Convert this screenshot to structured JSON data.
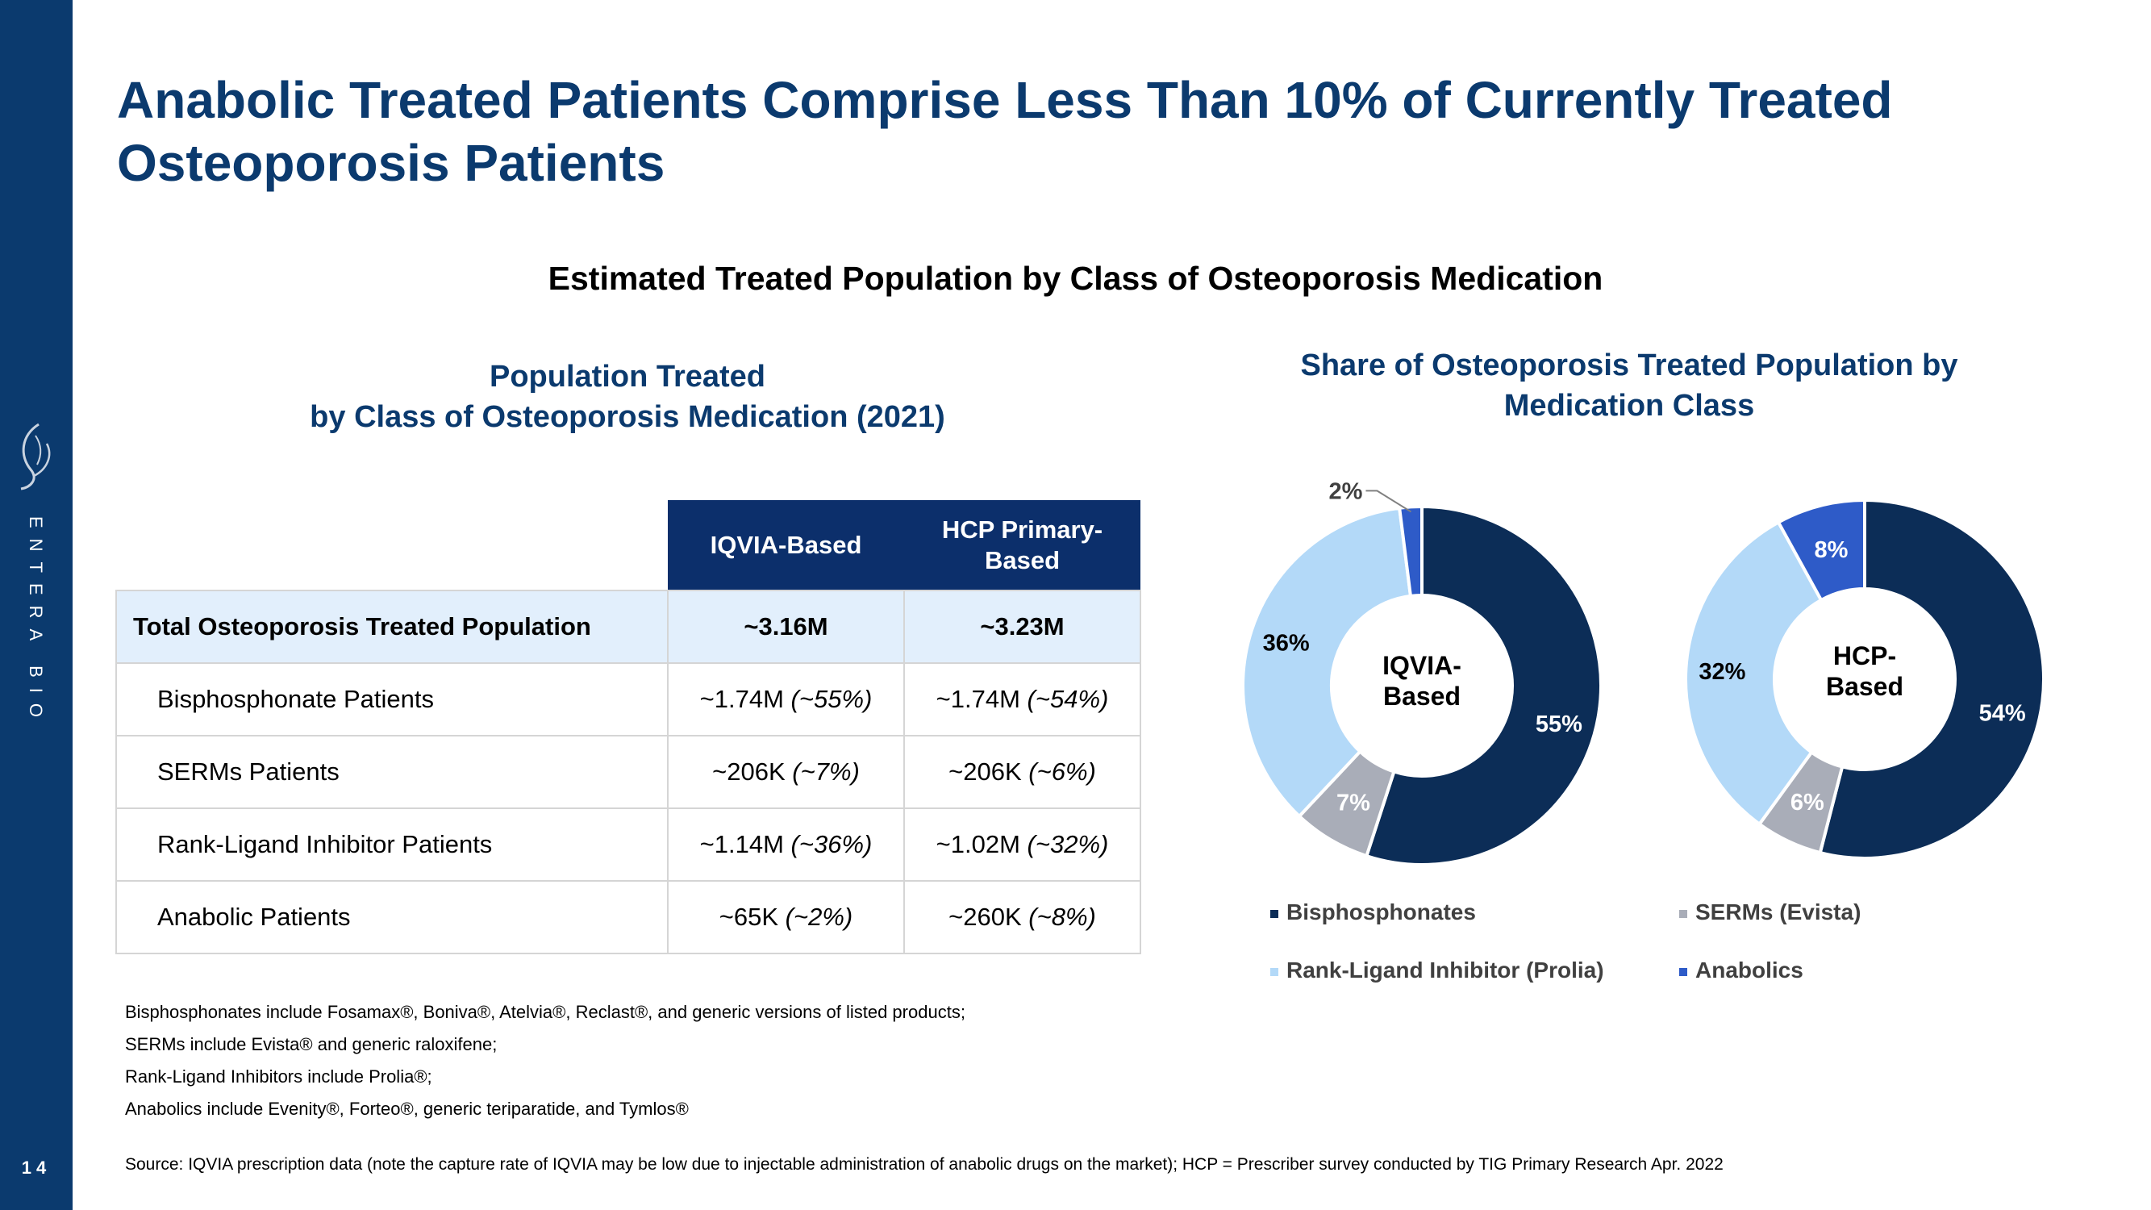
{
  "slide": {
    "title": "Anabolic Treated Patients Comprise Less Than 10% of Currently Treated Osteoporosis Patients",
    "subtitle": "Estimated Treated Population by Class of Osteoporosis Medication",
    "brand": "ENTERA BIO",
    "page_number": "14"
  },
  "table": {
    "title_line1": "Population Treated",
    "title_line2": "by Class of Osteoporosis Medication (2021)",
    "headers": [
      "",
      "IQVIA-Based",
      "HCP Primary-Based"
    ],
    "rows": [
      {
        "label": "Total Osteoporosis Treated Population",
        "iqvia": "~3.16M",
        "iqvia_pct": "",
        "hcp": "~3.23M",
        "hcp_pct": ""
      },
      {
        "label": "Bisphosphonate Patients",
        "iqvia": "~1.74M",
        "iqvia_pct": "(~55%)",
        "hcp": "~1.74M",
        "hcp_pct": "(~54%)"
      },
      {
        "label": "SERMs Patients",
        "iqvia": "~206K",
        "iqvia_pct": "(~7%)",
        "hcp": "~206K",
        "hcp_pct": "(~6%)"
      },
      {
        "label": "Rank-Ligand Inhibitor Patients",
        "iqvia": "~1.14M",
        "iqvia_pct": "(~36%)",
        "hcp": "~1.02M",
        "hcp_pct": "(~32%)"
      },
      {
        "label": "Anabolic Patients",
        "iqvia": "~65K",
        "iqvia_pct": "(~2%)",
        "hcp": "~260K",
        "hcp_pct": "(~8%)"
      }
    ]
  },
  "footnotes": {
    "bisphosphonates": "Bisphosphonates include Fosamax®, Boniva®, Atelvia®, Reclast®, and generic versions of listed products;",
    "serms": "SERMs include Evista® and generic raloxifene;",
    "rank_ligand": "Rank-Ligand Inhibitors include Prolia®;",
    "anabolics": "Anabolics include Evenity®, Forteo®, generic teriparatide, and Tymlos®",
    "source": "Source: IQVIA prescription data (note the capture rate  of IQVIA may be low due to injectable administration of anabolic drugs on the market);  HCP = Prescriber survey conducted by TIG Primary Research Apr. 2022"
  },
  "chart_data": {
    "type": "pie",
    "variant": "donut",
    "title": "Share of Osteoporosis Treated Population by Medication Class",
    "categories": [
      "Bisphosphonates",
      "SERMs (Evista)",
      "Rank-Ligand Inhibitor (Prolia)",
      "Anabolics"
    ],
    "colors": [
      "#0c2d57",
      "#a9adb8",
      "#b3d9f8",
      "#2e5bc8"
    ],
    "label_colors": [
      "#ffffff",
      "#ffffff",
      "#000000",
      "#ffffff"
    ],
    "series": [
      {
        "name": "IQVIA-Based",
        "center_label": [
          "IQVIA-",
          "Based"
        ],
        "values": [
          55,
          7,
          36,
          2
        ],
        "labels": [
          "55%",
          "7%",
          "36%",
          "2%"
        ]
      },
      {
        "name": "HCP-Based",
        "center_label": [
          "HCP-",
          "Based"
        ],
        "values": [
          54,
          6,
          32,
          8
        ],
        "labels": [
          "54%",
          "6%",
          "32%",
          "8%"
        ]
      }
    ],
    "legend": {
      "position": "bottom",
      "columns": 2
    }
  }
}
